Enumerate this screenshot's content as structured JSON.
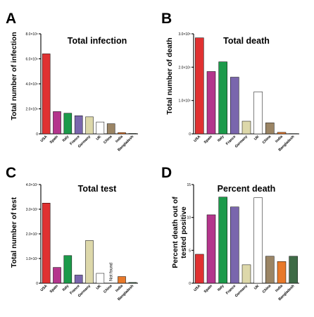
{
  "chart_data": [
    {
      "panel": "A",
      "type": "bar",
      "title": "Total infection",
      "ylabel": "Total number of infection",
      "categories": [
        "USA",
        "Spain",
        "Italy",
        "France",
        "Germany",
        "UK",
        "China",
        "India",
        "Bangladesh"
      ],
      "values": [
        6400000,
        1780000,
        1650000,
        1450000,
        1360000,
        950000,
        810000,
        100000,
        30000
      ],
      "colors": [
        "#e03131",
        "#b4358c",
        "#1c9a4a",
        "#7a66ad",
        "#ddd8aa",
        "#ffffff",
        "#9b8565",
        "#e8792a",
        "#3e6b46"
      ],
      "ylim": [
        0,
        8000000
      ],
      "yticks": [
        0,
        2000000,
        4000000,
        6000000,
        8000000
      ],
      "ytick_labels": [
        "0",
        "2.0×10⁶",
        "4.0×10⁶",
        "6.0×10⁶",
        "8.0×10⁶"
      ],
      "not_found": []
    },
    {
      "panel": "B",
      "type": "bar",
      "title": "Total death",
      "ylabel": "Total number of death",
      "categories": [
        "USA",
        "Spain",
        "Italy",
        "France",
        "Germany",
        "UK",
        "China",
        "India",
        "Bangladesh"
      ],
      "values": [
        288000,
        187000,
        216000,
        170000,
        38000,
        126000,
        33000,
        4500,
        800
      ],
      "colors": [
        "#e03131",
        "#b4358c",
        "#1c9a4a",
        "#7a66ad",
        "#ddd8aa",
        "#ffffff",
        "#9b8565",
        "#e8792a",
        "#3e6b46"
      ],
      "ylim": [
        0,
        300000
      ],
      "yticks": [
        0,
        100000,
        200000,
        300000
      ],
      "ytick_labels": [
        "0",
        "1.0×10⁵",
        "2.0×10⁵",
        "3.0×10⁵"
      ],
      "not_found": []
    },
    {
      "panel": "C",
      "type": "bar",
      "title": "Total test",
      "ylabel": "Total number of test",
      "categories": [
        "USA",
        "Spain",
        "Italy",
        "France",
        "Germany",
        "UK",
        "China",
        "India",
        "Bangladesh"
      ],
      "values": [
        32500000,
        6400000,
        11200000,
        3300000,
        17300000,
        4000000,
        null,
        2700000,
        300000
      ],
      "colors": [
        "#e03131",
        "#b4358c",
        "#1c9a4a",
        "#7a66ad",
        "#ddd8aa",
        "#ffffff",
        "#9b8565",
        "#e8792a",
        "#3e6b46"
      ],
      "ylim": [
        0,
        40000000
      ],
      "yticks": [
        0,
        10000000,
        20000000,
        30000000,
        40000000
      ],
      "ytick_labels": [
        "0",
        "1.0×10⁷",
        "2.0×10⁷",
        "3.0×10⁷",
        "4.0×10⁷"
      ],
      "not_found": [
        "China"
      ],
      "annotation": "Not found"
    },
    {
      "panel": "D",
      "type": "bar",
      "title": "Percent death",
      "ylabel_lines": [
        "Percent death out of",
        "tested positive"
      ],
      "categories": [
        "USA",
        "Spain",
        "Italy",
        "France",
        "Germany",
        "UK",
        "China",
        "India",
        "Bangladesh"
      ],
      "values": [
        4.4,
        10.4,
        13.1,
        11.6,
        2.8,
        13.0,
        4.1,
        3.3,
        4.1
      ],
      "colors": [
        "#e03131",
        "#b4358c",
        "#1c9a4a",
        "#7a66ad",
        "#ddd8aa",
        "#ffffff",
        "#9b8565",
        "#e8792a",
        "#3e6b46"
      ],
      "ylim": [
        0,
        15
      ],
      "yticks": [
        0,
        5,
        10,
        15
      ],
      "ytick_labels": [
        "0",
        "5",
        "10",
        "15"
      ],
      "not_found": []
    }
  ]
}
